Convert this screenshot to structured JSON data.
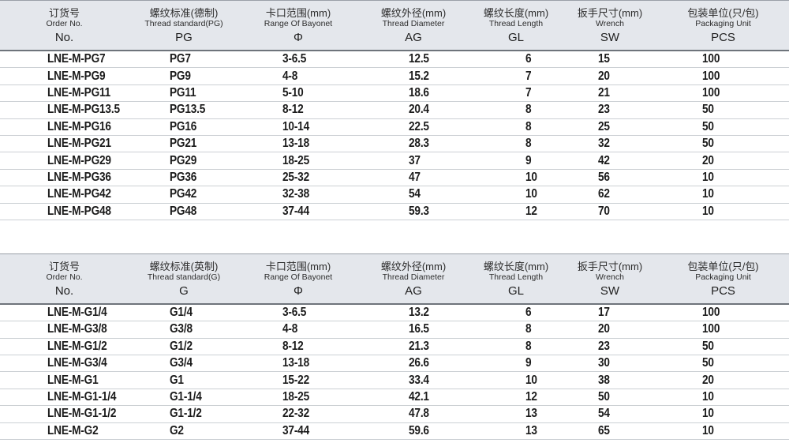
{
  "colors": {
    "header_bg": "#e4e7ec",
    "header_border_top": "#9aa0a8",
    "header_border_bottom": "#6e747b",
    "row_separator": "#ccd0d4",
    "text": "#1b1b1b"
  },
  "tables": [
    {
      "name": "pg-thread-spec-table",
      "columns": [
        {
          "zh": "订货号",
          "en": "Order No.",
          "code": "No."
        },
        {
          "zh": "螺纹标准(德制)",
          "en": "Thread standard(PG)",
          "code": "PG"
        },
        {
          "zh": "卡口范围(mm)",
          "en": "Range Of Bayonet",
          "code": "Φ"
        },
        {
          "zh": "螺纹外径(mm)",
          "en": "Thread Diameter",
          "code": "AG"
        },
        {
          "zh": "螺纹长度(mm)",
          "en": "Thread Length",
          "code": "GL"
        },
        {
          "zh": "扳手尺寸(mm)",
          "en": "Wrench",
          "code": "SW"
        },
        {
          "zh": "包装单位(只/包)",
          "en": "Packaging Unit",
          "code": "PCS"
        }
      ],
      "rows": [
        [
          "LNE-M-PG7",
          "PG7",
          "3-6.5",
          "12.5",
          "6",
          "15",
          "100"
        ],
        [
          "LNE-M-PG9",
          "PG9",
          "4-8",
          "15.2",
          "7",
          "20",
          "100"
        ],
        [
          "LNE-M-PG11",
          "PG11",
          "5-10",
          "18.6",
          "7",
          "21",
          "100"
        ],
        [
          "LNE-M-PG13.5",
          "PG13.5",
          "8-12",
          "20.4",
          "8",
          "23",
          "50"
        ],
        [
          "LNE-M-PG16",
          "PG16",
          "10-14",
          "22.5",
          "8",
          "25",
          "50"
        ],
        [
          "LNE-M-PG21",
          "PG21",
          "13-18",
          "28.3",
          "8",
          "32",
          "50"
        ],
        [
          "LNE-M-PG29",
          "PG29",
          "18-25",
          "37",
          "9",
          "42",
          "20"
        ],
        [
          "LNE-M-PG36",
          "PG36",
          "25-32",
          "47",
          "10",
          "56",
          "10"
        ],
        [
          "LNE-M-PG42",
          "PG42",
          "32-38",
          "54",
          "10",
          "62",
          "10"
        ],
        [
          "LNE-M-PG48",
          "PG48",
          "37-44",
          "59.3",
          "12",
          "70",
          "10"
        ]
      ]
    },
    {
      "name": "g-thread-spec-table",
      "columns": [
        {
          "zh": "订货号",
          "en": "Order No.",
          "code": "No."
        },
        {
          "zh": "螺纹标准(英制)",
          "en": "Thread standard(G)",
          "code": "G"
        },
        {
          "zh": "卡口范围(mm)",
          "en": "Range Of Bayonet",
          "code": "Φ"
        },
        {
          "zh": "螺纹外径(mm)",
          "en": "Thread Diameter",
          "code": "AG"
        },
        {
          "zh": "螺纹长度(mm)",
          "en": "Thread Length",
          "code": "GL"
        },
        {
          "zh": "扳手尺寸(mm)",
          "en": "Wrench",
          "code": "SW"
        },
        {
          "zh": "包装单位(只/包)",
          "en": "Packaging Unit",
          "code": "PCS"
        }
      ],
      "rows": [
        [
          "LNE-M-G1/4",
          "G1/4",
          "3-6.5",
          "13.2",
          "6",
          "17",
          "100"
        ],
        [
          "LNE-M-G3/8",
          "G3/8",
          "4-8",
          "16.5",
          "8",
          "20",
          "100"
        ],
        [
          "LNE-M-G1/2",
          "G1/2",
          "8-12",
          "21.3",
          "8",
          "23",
          "50"
        ],
        [
          "LNE-M-G3/4",
          "G3/4",
          "13-18",
          "26.6",
          "9",
          "30",
          "50"
        ],
        [
          "LNE-M-G1",
          "G1",
          "15-22",
          "33.4",
          "10",
          "38",
          "20"
        ],
        [
          "LNE-M-G1-1/4",
          "G1-1/4",
          "18-25",
          "42.1",
          "12",
          "50",
          "10"
        ],
        [
          "LNE-M-G1-1/2",
          "G1-1/2",
          "22-32",
          "47.8",
          "13",
          "54",
          "10"
        ],
        [
          "LNE-M-G2",
          "G2",
          "37-44",
          "59.6",
          "13",
          "65",
          "10"
        ]
      ]
    }
  ]
}
